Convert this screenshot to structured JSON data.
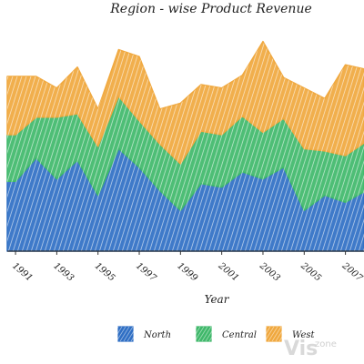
{
  "chart_data": {
    "type": "area",
    "stacked": true,
    "style": "hand-drawn",
    "title": "Region - wise Product Revenue",
    "xlabel": "Year",
    "ylabel": "",
    "x": [
      1991,
      1992,
      1993,
      1994,
      1995,
      1996,
      1997,
      1998,
      1999,
      2000,
      2001,
      2002,
      2003,
      2004,
      2005,
      2006,
      2007,
      2008
    ],
    "xticks": [
      "1991",
      "1993",
      "1995",
      "1997",
      "1999",
      "2001",
      "2003",
      "2005",
      "2007"
    ],
    "xlim": [
      1990.6,
      2007.9
    ],
    "ylim": [
      0,
      200
    ],
    "series": [
      {
        "name": "North",
        "color": "#2f6fc4",
        "values": [
          60,
          80,
          62,
          78,
          48,
          88,
          72,
          52,
          35,
          58,
          55,
          68,
          62,
          72,
          35,
          48,
          42,
          52
        ]
      },
      {
        "name": "Central",
        "color": "#3fb86a",
        "values": [
          40,
          35,
          53,
          40,
          42,
          45,
          40,
          40,
          40,
          45,
          45,
          48,
          40,
          42,
          53,
          38,
          40,
          42
        ]
      },
      {
        "name": "West",
        "color": "#f0a83e",
        "values": [
          50,
          35,
          25,
          40,
          32,
          40,
          55,
          30,
          52,
          40,
          40,
          35,
          78,
          35,
          52,
          45,
          78,
          62
        ]
      }
    ],
    "legend_position": "bottom",
    "grid": false
  },
  "watermark": {
    "text_main": "Vis",
    "text_sub": "zone"
  }
}
